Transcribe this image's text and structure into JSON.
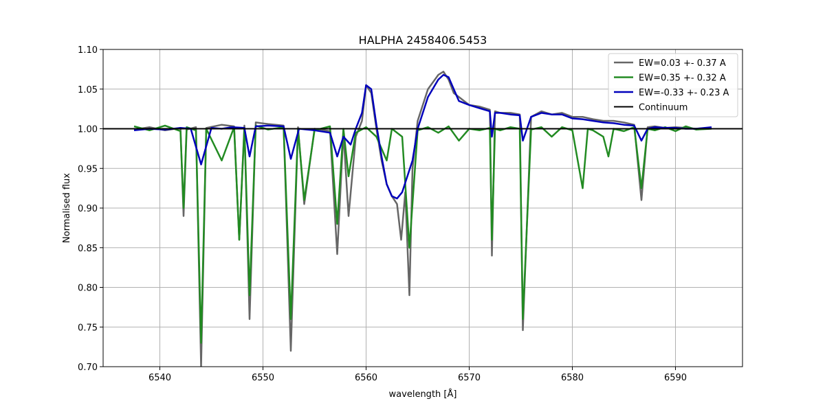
{
  "chart_data": {
    "type": "line",
    "title": "HALPHA 2458406.5453",
    "xlabel": "wavelength [Å]",
    "ylabel": "Normalised flux",
    "xlim": [
      6534.5,
      6596.5
    ],
    "ylim": [
      0.7,
      1.1
    ],
    "xticks": [
      6540,
      6550,
      6560,
      6570,
      6580,
      6590
    ],
    "xtick_labels": [
      "6540",
      "6550",
      "6560",
      "6570",
      "6580",
      "6590"
    ],
    "yticks": [
      0.7,
      0.75,
      0.8,
      0.85,
      0.9,
      0.95,
      1.0,
      1.05,
      1.1
    ],
    "ytick_labels": [
      "0.70",
      "0.75",
      "0.80",
      "0.85",
      "0.90",
      "0.95",
      "1.00",
      "1.05",
      "1.10"
    ],
    "grid": true,
    "legend_position": "top-right",
    "series": [
      {
        "name": "EW=0.03 +- 0.37 A",
        "color": "#666666",
        "x": [
          6537.5,
          6539,
          6540.5,
          6542,
          6542.3,
          6542.6,
          6543.5,
          6544,
          6544.5,
          6546,
          6547.2,
          6547.7,
          6548.2,
          6548.7,
          6549.3,
          6550.5,
          6552,
          6552.7,
          6553.4,
          6554,
          6555,
          6556.5,
          6557.2,
          6557.8,
          6558.3,
          6559,
          6559.6,
          6560,
          6560.5,
          6561,
          6561.5,
          6562,
          6562.5,
          6563,
          6563.4,
          6563.8,
          6564.2,
          6564.5,
          6565,
          6566,
          6567,
          6567.5,
          6568,
          6568.5,
          6569,
          6570,
          6571,
          6572,
          6572.2,
          6572.5,
          6573,
          6574,
          6574.9,
          6575.2,
          6576,
          6577,
          6578,
          6579,
          6580,
          6581,
          6582,
          6583,
          6584,
          6585,
          6586,
          6586.7,
          6587.3,
          6588,
          6589,
          6590,
          6591,
          6592,
          6593.5
        ],
        "values": [
          0.999,
          1.002,
          0.998,
          1.001,
          0.89,
          0.999,
          1.002,
          0.7,
          1.001,
          1.005,
          1.003,
          0.86,
          1.004,
          0.76,
          1.008,
          1.006,
          1.004,
          0.72,
          1.002,
          0.905,
          1.0,
          0.997,
          0.842,
          0.995,
          0.89,
          0.99,
          1.01,
          1.055,
          1.045,
          1.0,
          0.96,
          0.93,
          0.915,
          0.905,
          0.86,
          0.92,
          0.79,
          0.95,
          1.01,
          1.05,
          1.068,
          1.072,
          1.062,
          1.045,
          1.04,
          1.03,
          1.028,
          1.024,
          0.84,
          1.022,
          1.02,
          1.02,
          1.018,
          0.746,
          1.015,
          1.022,
          1.018,
          1.02,
          1.015,
          1.015,
          1.012,
          1.01,
          1.01,
          1.008,
          1.005,
          0.91,
          1.002,
          1.003,
          1.001,
          1.002,
          1.001,
          1.0,
          1.001
        ]
      },
      {
        "name": "EW=0.35 +- 0.32 A",
        "color": "#228b22",
        "x": [
          6537.5,
          6539,
          6540.5,
          6542,
          6542.3,
          6542.6,
          6543.5,
          6544,
          6544.5,
          6546,
          6547.2,
          6547.7,
          6548.2,
          6548.7,
          6549.3,
          6550.5,
          6552,
          6552.7,
          6553.4,
          6554,
          6555,
          6556.5,
          6557.2,
          6557.8,
          6558.3,
          6559,
          6560,
          6561,
          6562,
          6562.5,
          6563.5,
          6564.2,
          6565,
          6566,
          6567,
          6568,
          6569,
          6570,
          6571,
          6572,
          6572.2,
          6572.5,
          6573,
          6574,
          6574.9,
          6575.2,
          6576,
          6577,
          6578,
          6579,
          6580,
          6581,
          6581.5,
          6582,
          6583,
          6583.5,
          6584,
          6585,
          6586,
          6586.7,
          6587.3,
          6588,
          6589,
          6590,
          6591,
          6592,
          6593.5
        ],
        "values": [
          1.003,
          0.998,
          1.004,
          0.997,
          0.9,
          1.002,
          0.998,
          0.73,
          1.0,
          0.96,
          1.002,
          0.86,
          1.001,
          0.79,
          1.004,
          0.999,
          1.002,
          0.76,
          1.0,
          0.91,
          0.998,
          1.003,
          0.88,
          1.0,
          0.94,
          0.995,
          1.002,
          0.99,
          0.96,
          1.0,
          0.99,
          0.85,
          0.998,
          1.002,
          0.995,
          1.003,
          0.985,
          1.0,
          0.998,
          1.001,
          0.86,
          1.0,
          0.998,
          1.002,
          1.0,
          0.76,
          0.999,
          1.002,
          0.99,
          1.002,
          0.998,
          0.925,
          1.0,
          0.998,
          0.99,
          0.965,
          1.0,
          0.997,
          1.002,
          0.925,
          1.0,
          0.998,
          1.002,
          0.997,
          1.003,
          0.999,
          1.0
        ]
      },
      {
        "name": "EW=-0.33 +- 0.23 A",
        "color": "#0000bb",
        "x": [
          6537.5,
          6539,
          6540.5,
          6542,
          6543,
          6544,
          6545,
          6546,
          6547,
          6548.2,
          6548.7,
          6549.3,
          6550.5,
          6552,
          6552.7,
          6553.5,
          6555,
          6556.5,
          6557.2,
          6557.8,
          6558.5,
          6559,
          6559.6,
          6560,
          6560.5,
          6561,
          6561.5,
          6562,
          6562.5,
          6563,
          6563.5,
          6564,
          6564.5,
          6565,
          6566,
          6567,
          6567.5,
          6568,
          6568.5,
          6569,
          6570,
          6571,
          6572,
          6572.2,
          6572.5,
          6573,
          6574,
          6574.9,
          6575.2,
          6576,
          6577,
          6578,
          6579,
          6580,
          6581,
          6582,
          6583,
          6584,
          6585,
          6586,
          6586.7,
          6587.3,
          6588,
          6589,
          6590,
          6591,
          6592,
          6593.5
        ],
        "values": [
          0.998,
          1.0,
          0.999,
          1.001,
          1.0,
          0.955,
          1.001,
          1.0,
          1.002,
          1.001,
          0.965,
          1.003,
          1.004,
          1.003,
          0.962,
          1.0,
          0.998,
          0.995,
          0.965,
          0.99,
          0.98,
          1.0,
          1.02,
          1.055,
          1.05,
          1.005,
          0.965,
          0.93,
          0.915,
          0.912,
          0.92,
          0.94,
          0.96,
          1.0,
          1.04,
          1.062,
          1.068,
          1.065,
          1.05,
          1.035,
          1.03,
          1.026,
          1.022,
          0.99,
          1.02,
          1.02,
          1.018,
          1.017,
          0.985,
          1.015,
          1.02,
          1.018,
          1.018,
          1.013,
          1.012,
          1.01,
          1.008,
          1.007,
          1.005,
          1.004,
          0.985,
          1.0,
          1.002,
          1.001,
          1.001,
          1.0,
          1.0,
          1.002
        ]
      },
      {
        "name": "Continuum",
        "color": "#000000",
        "x": [
          6534.5,
          6596.5
        ],
        "values": [
          1.0,
          1.0
        ]
      }
    ]
  }
}
